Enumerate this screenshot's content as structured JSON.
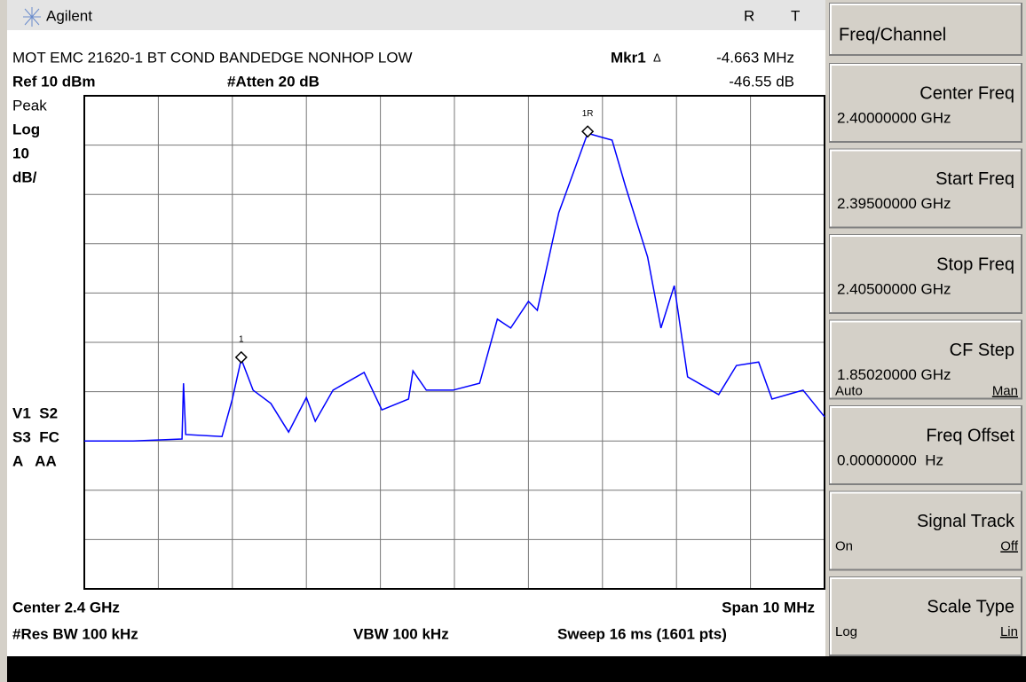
{
  "header": {
    "brand": "Agilent",
    "flag_r": "R",
    "flag_t": "T"
  },
  "info": {
    "title": "MOT EMC 21620-1 BT COND BANDEDGE NONHOP LOW",
    "marker_name": "Mkr1",
    "marker_delta": "Δ",
    "marker_freq": "-4.663 MHz",
    "ref": "Ref 10 dBm",
    "atten": "#Atten 20 dB",
    "marker_level": "-46.55 dB",
    "left": [
      "Peak",
      "Log",
      "10",
      "dB/"
    ],
    "left_lower": [
      "V1  S2",
      "S3  FC",
      "A   AA"
    ],
    "center": "Center 2.4 GHz",
    "span": "Span 10 MHz",
    "rbw": "#Res BW 100 kHz",
    "vbw": "VBW 100 kHz",
    "sweep": "Sweep 16 ms (1601 pts)"
  },
  "softkeys": {
    "menu": "Freq/Channel",
    "keys": [
      {
        "label": "Center Freq",
        "value": "2.40000000 GHz"
      },
      {
        "label": "Start Freq",
        "value": "2.39500000 GHz"
      },
      {
        "label": "Stop Freq",
        "value": "2.40500000 GHz"
      },
      {
        "label": "CF Step",
        "value": "1.85020000 GHz",
        "options": [
          "Auto",
          "Man"
        ]
      },
      {
        "label": "Freq Offset",
        "value": "0.00000000  Hz"
      },
      {
        "label": "Signal Track",
        "options": [
          "On",
          "Off"
        ]
      },
      {
        "label": "Scale Type",
        "options": [
          "Log",
          "Lin"
        ]
      }
    ]
  },
  "chart_data": {
    "type": "line",
    "color": "#0000ff",
    "xlim": [
      2.395,
      2.405
    ],
    "ylim": [
      -90,
      10
    ],
    "xticks": [
      2.395,
      2.396,
      2.397,
      2.398,
      2.399,
      2.4,
      2.401,
      2.402,
      2.403,
      2.404,
      2.405
    ],
    "yticks": [
      10,
      0,
      -10,
      -20,
      -30,
      -40,
      -50,
      -60,
      -70,
      -80,
      -90
    ],
    "grid": true,
    "x": [
      2.395,
      2.39566,
      2.39632,
      2.39634,
      2.39637,
      2.39686,
      2.397,
      2.39712,
      2.39728,
      2.39752,
      2.39776,
      2.398,
      2.39812,
      2.39836,
      2.39878,
      2.39902,
      2.39938,
      2.39944,
      2.39962,
      2.39998,
      2.40034,
      2.40058,
      2.40076,
      2.401,
      2.40112,
      2.40141,
      2.40165,
      2.4018,
      2.40201,
      2.40213,
      2.40231,
      2.40261,
      2.40279,
      2.40297,
      2.40315,
      2.40357,
      2.40381,
      2.40411,
      2.40429,
      2.40471,
      2.405
    ],
    "values": [
      -60.0,
      -60.0,
      -59.6,
      -48.3,
      -58.7,
      -59.1,
      -51.5,
      -43.4,
      -49.7,
      -52.4,
      -58.2,
      -51.2,
      -56.0,
      -49.7,
      -46.1,
      -53.7,
      -51.5,
      -45.8,
      -49.7,
      -49.7,
      -48.3,
      -35.3,
      -37.1,
      -31.7,
      -33.5,
      -13.7,
      -3.8,
      2.4,
      1.5,
      1.0,
      -8.3,
      -22.7,
      -37.1,
      -28.5,
      -47.0,
      -50.6,
      -44.7,
      -44.0,
      -51.5,
      -49.7,
      -55.1
    ],
    "markers": [
      {
        "label": "1",
        "x": 2.39712,
        "y": -43.4
      },
      {
        "label": "1R",
        "x": 2.4018,
        "y": 2.4
      }
    ]
  }
}
